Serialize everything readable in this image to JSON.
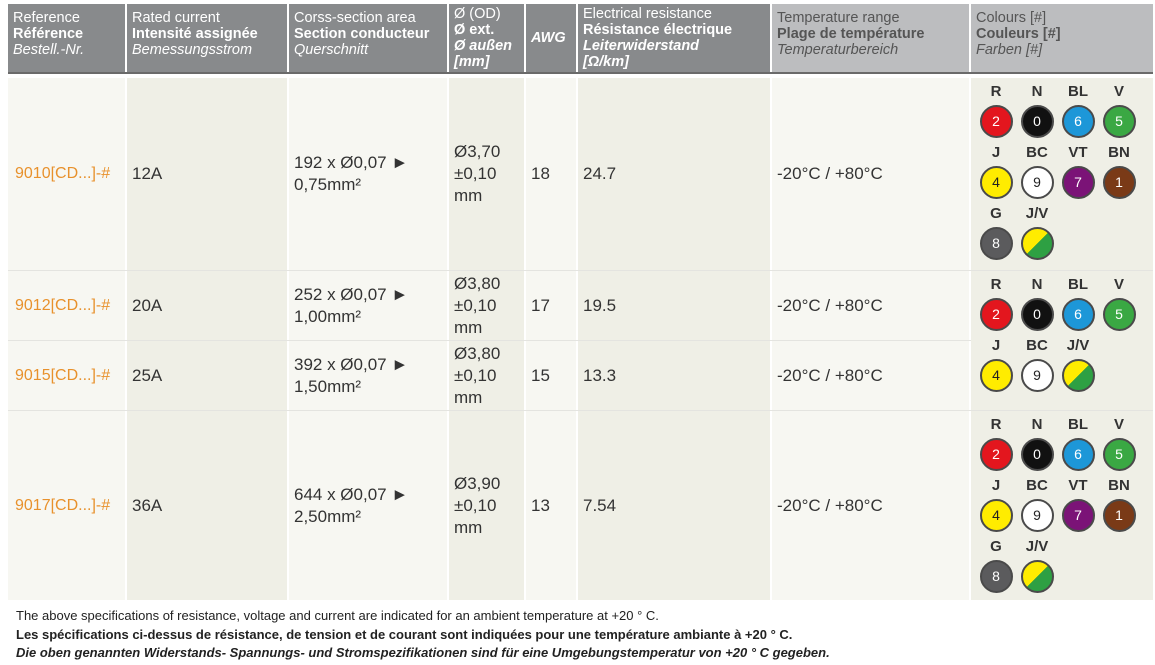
{
  "header": {
    "reference": [
      "Reference",
      "Référence",
      "Bestell.-Nr."
    ],
    "current": [
      "Rated current",
      "Intensité assignée",
      "Bemessungsstrom"
    ],
    "section": [
      "Corss-section area",
      "Section conducteur",
      "Querschnitt"
    ],
    "od": [
      "Ø (OD)",
      "Ø ext.",
      "Ø außen",
      "[mm]"
    ],
    "awg": "AWG",
    "resistance": [
      "Electrical resistance",
      "Résistance électrique",
      "Leiterwiderstand",
      "[Ω/km]"
    ],
    "temperature": [
      "Temperature range",
      "Plage de température",
      "Temperaturbereich"
    ],
    "colours": [
      "Colours [#]",
      "Couleurs [#]",
      "Farben [#]"
    ]
  },
  "rows": [
    {
      "ref": "9010[CD...]-#",
      "current": "12A",
      "section1": "192 x Ø0,07 ►",
      "section2": "0,75mm²",
      "od1": "Ø3,70",
      "od2": "±0,10",
      "od3": "mm",
      "awg": "18",
      "resistance": "24.7",
      "temp": "-20°C / +80°C"
    },
    {
      "ref": "9012[CD...]-#",
      "current": "20A",
      "section1": "252 x Ø0,07 ►",
      "section2": "1,00mm²",
      "od1": "Ø3,80",
      "od2": "±0,10",
      "od3": "mm",
      "awg": "17",
      "resistance": "19.5",
      "temp": "-20°C / +80°C"
    },
    {
      "ref": "9015[CD...]-#",
      "current": "25A",
      "section1": "392 x Ø0,07 ►",
      "section2": "1,50mm²",
      "od1": "Ø3,80",
      "od2": "±0,10",
      "od3": "mm",
      "awg": "15",
      "resistance": "13.3",
      "temp": "-20°C / +80°C"
    },
    {
      "ref": "9017[CD...]-#",
      "current": "36A",
      "section1": "644 x Ø0,07 ►",
      "section2": "2,50mm²",
      "od1": "Ø3,90",
      "od2": "±0,10",
      "od3": "mm",
      "awg": "13",
      "resistance": "7.54",
      "temp": "-20°C / +80°C"
    }
  ],
  "colour_sets": [
    [
      {
        "label": "R",
        "num": "2",
        "color": "#e3161e"
      },
      {
        "label": "N",
        "num": "0",
        "color": "#111111"
      },
      {
        "label": "BL",
        "num": "6",
        "color": "#1d97d8"
      },
      {
        "label": "V",
        "num": "5",
        "color": "#3aa843"
      },
      {
        "label": "J",
        "num": "4",
        "color": "#ffec00"
      },
      {
        "label": "BC",
        "num": "9",
        "color": "#ffffff"
      },
      {
        "label": "VT",
        "num": "7",
        "color": "#7b1377"
      },
      {
        "label": "BN",
        "num": "1",
        "color": "#7a3a17"
      },
      {
        "label": "G",
        "num": "8",
        "color": "#5b5b5d"
      },
      {
        "label": "J/V",
        "num": "",
        "color": "yg"
      }
    ],
    [
      {
        "label": "R",
        "num": "2",
        "color": "#e3161e"
      },
      {
        "label": "N",
        "num": "0",
        "color": "#111111"
      },
      {
        "label": "BL",
        "num": "6",
        "color": "#1d97d8"
      },
      {
        "label": "V",
        "num": "5",
        "color": "#3aa843"
      },
      {
        "label": "J",
        "num": "4",
        "color": "#ffec00"
      },
      {
        "label": "BC",
        "num": "9",
        "color": "#ffffff"
      },
      {
        "label": "J/V",
        "num": "",
        "color": "yg"
      }
    ],
    [
      {
        "label": "R",
        "num": "2",
        "color": "#e3161e"
      },
      {
        "label": "N",
        "num": "0",
        "color": "#111111"
      },
      {
        "label": "BL",
        "num": "6",
        "color": "#1d97d8"
      },
      {
        "label": "V",
        "num": "5",
        "color": "#3aa843"
      },
      {
        "label": "J",
        "num": "4",
        "color": "#ffec00"
      },
      {
        "label": "BC",
        "num": "9",
        "color": "#ffffff"
      },
      {
        "label": "VT",
        "num": "7",
        "color": "#7b1377"
      },
      {
        "label": "BN",
        "num": "1",
        "color": "#7a3a17"
      },
      {
        "label": "G",
        "num": "8",
        "color": "#5b5b5d"
      },
      {
        "label": "J/V",
        "num": "",
        "color": "yg"
      }
    ]
  ],
  "footer": {
    "en": "The above specifications of resistance, voltage and current are indicated for an ambient temperature at +20 ° C.",
    "fr": "Les spécifications ci-dessus de résistance, de tension et de courant sont indiquées pour une température ambiante à +20 ° C.",
    "de": "Die oben genannten Widerstands- Spannungs- und Stromspezifikationen sind für eine Umgebungstemperatur von +20 ° C gegeben."
  }
}
